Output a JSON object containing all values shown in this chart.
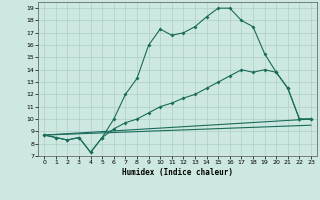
{
  "xlabel": "Humidex (Indice chaleur)",
  "xlim": [
    -0.5,
    23.5
  ],
  "ylim": [
    7,
    19.5
  ],
  "xticks": [
    0,
    1,
    2,
    3,
    4,
    5,
    6,
    7,
    8,
    9,
    10,
    11,
    12,
    13,
    14,
    15,
    16,
    17,
    18,
    19,
    20,
    21,
    22,
    23
  ],
  "yticks": [
    7,
    8,
    9,
    10,
    11,
    12,
    13,
    14,
    15,
    16,
    17,
    18,
    19
  ],
  "bg_color": "#cde8e0",
  "grid_color": "#b0cfc8",
  "line_color": "#1a6b5a",
  "line1_x": [
    0,
    1,
    2,
    3,
    4,
    5,
    6,
    7,
    8,
    9,
    10,
    11,
    12,
    13,
    14,
    15,
    16,
    17,
    18,
    19,
    20,
    21,
    22,
    23
  ],
  "line1_y": [
    8.7,
    8.5,
    8.3,
    8.5,
    7.3,
    8.5,
    10.0,
    12.0,
    13.3,
    16.0,
    17.3,
    16.8,
    17.0,
    17.5,
    18.3,
    19.0,
    19.0,
    18.0,
    17.5,
    15.3,
    13.8,
    12.5,
    10.0,
    10.0
  ],
  "line2_x": [
    0,
    1,
    2,
    3,
    4,
    5,
    6,
    7,
    8,
    9,
    10,
    11,
    12,
    13,
    14,
    15,
    16,
    17,
    18,
    19,
    20,
    21,
    22,
    23
  ],
  "line2_y": [
    8.7,
    8.5,
    8.3,
    8.5,
    7.3,
    8.5,
    9.2,
    9.7,
    10.0,
    10.5,
    11.0,
    11.3,
    11.7,
    12.0,
    12.5,
    13.0,
    13.5,
    14.0,
    13.8,
    14.0,
    13.8,
    12.5,
    10.0,
    10.0
  ],
  "line3_x": [
    0,
    23
  ],
  "line3_y": [
    8.7,
    10.0
  ],
  "line4_x": [
    0,
    23
  ],
  "line4_y": [
    8.7,
    9.5
  ]
}
